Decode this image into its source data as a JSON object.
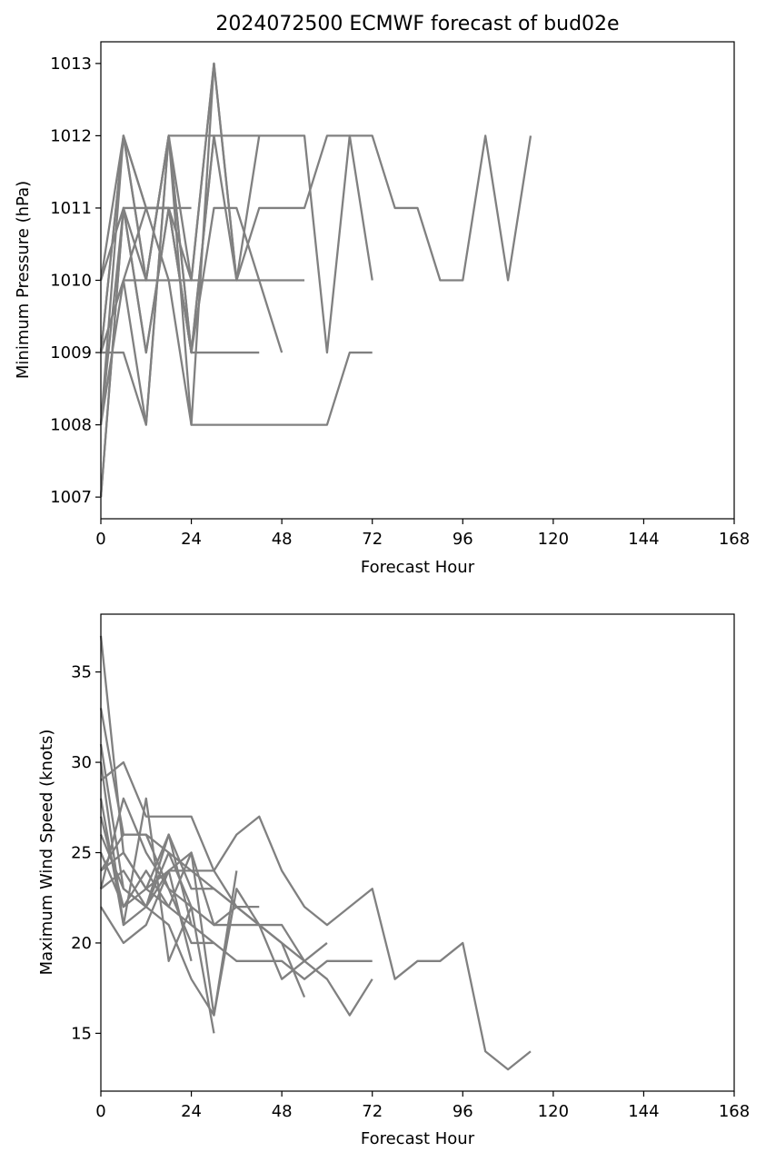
{
  "chart_data": [
    {
      "type": "line",
      "title": "2024072500 ECMWF forecast of bud02e",
      "xlabel": "Forecast Hour",
      "ylabel": "Minimum Pressure (hPa)",
      "xlim": [
        0,
        168
      ],
      "ylim": [
        1006.7,
        1013.3
      ],
      "xticks": [
        0,
        24,
        48,
        72,
        96,
        120,
        144,
        168
      ],
      "yticks": [
        1007,
        1008,
        1009,
        1010,
        1011,
        1012,
        1013
      ],
      "grid": false,
      "line_color": "#808080",
      "series": [
        {
          "x": [
            0,
            6,
            12,
            18,
            24,
            30,
            36,
            42,
            48,
            54,
            60,
            66,
            72,
            78,
            84,
            90,
            96,
            102,
            108,
            114
          ],
          "values": [
            1009,
            1012,
            1010,
            1012,
            1010,
            1013,
            1010,
            1011,
            1011,
            1011,
            1012,
            1012,
            1012,
            1011,
            1011,
            1010,
            1010,
            1012,
            1010,
            1012
          ]
        },
        {
          "x": [
            0,
            6,
            12,
            18,
            24,
            30,
            36,
            42,
            48,
            54,
            60,
            66,
            72
          ],
          "values": [
            1010,
            1011,
            1010,
            1012,
            1012,
            1012,
            1012,
            1012,
            1012,
            1012,
            1009,
            1012,
            1010
          ]
        },
        {
          "x": [
            0,
            6,
            12,
            18,
            24,
            30,
            36,
            42,
            48,
            54,
            60,
            66,
            72
          ],
          "values": [
            1008,
            1012,
            1010,
            1012,
            1008,
            1008,
            1008,
            1008,
            1008,
            1008,
            1008,
            1009,
            1009
          ]
        },
        {
          "x": [
            0,
            6,
            12,
            18,
            24,
            30,
            36,
            42,
            48,
            54
          ],
          "values": [
            1007,
            1011,
            1009,
            1011,
            1010,
            1010,
            1010,
            1010,
            1010,
            1010
          ]
        },
        {
          "x": [
            0,
            6,
            12,
            18,
            24,
            30,
            36,
            42,
            48
          ],
          "values": [
            1009,
            1010,
            1011,
            1011,
            1009,
            1011,
            1011,
            1010,
            1009
          ]
        },
        {
          "x": [
            0,
            6,
            12,
            18,
            24,
            30,
            36,
            42
          ],
          "values": [
            1009,
            1009,
            1008,
            1012,
            1009,
            1009,
            1009,
            1009
          ]
        },
        {
          "x": [
            0,
            6,
            12,
            18,
            24,
            30,
            36,
            42
          ],
          "values": [
            1010,
            1012,
            1011,
            1011,
            1009,
            1012,
            1010,
            1012
          ]
        },
        {
          "x": [
            0,
            6,
            12,
            18,
            24,
            30,
            36
          ],
          "values": [
            1008,
            1010,
            1010,
            1010,
            1010,
            1013,
            1010
          ]
        },
        {
          "x": [
            0,
            6,
            12,
            18,
            24,
            30
          ],
          "values": [
            1009,
            1012,
            1011,
            1010,
            1008,
            1013
          ]
        },
        {
          "x": [
            0,
            6,
            12,
            18,
            24,
            30
          ],
          "values": [
            1007,
            1011,
            1009,
            1011,
            1009,
            1012
          ]
        },
        {
          "x": [
            0,
            6,
            12,
            18,
            24
          ],
          "values": [
            1008,
            1011,
            1011,
            1011,
            1011
          ]
        },
        {
          "x": [
            0,
            6,
            12,
            18,
            24
          ],
          "values": [
            1009,
            1010,
            1008,
            1012,
            1009
          ]
        }
      ]
    },
    {
      "type": "line",
      "title": "",
      "xlabel": "Forecast Hour",
      "ylabel": "Maximum Wind Speed (knots)",
      "xlim": [
        0,
        168
      ],
      "ylim": [
        11.8,
        38.2
      ],
      "xticks": [
        0,
        24,
        48,
        72,
        96,
        120,
        144,
        168
      ],
      "yticks": [
        15,
        20,
        25,
        30,
        35
      ],
      "grid": false,
      "line_color": "#808080",
      "series": [
        {
          "x": [
            0,
            6,
            12,
            18,
            24,
            30,
            36,
            42,
            48,
            54,
            60,
            66,
            72,
            78,
            84,
            90,
            96,
            102,
            108,
            114
          ],
          "values": [
            29,
            30,
            27,
            27,
            27,
            24,
            26,
            27,
            24,
            22,
            21,
            22,
            23,
            18,
            19,
            19,
            20,
            14,
            13,
            14
          ]
        },
        {
          "x": [
            0,
            6,
            12,
            18,
            24,
            30,
            36,
            42,
            48,
            54,
            60,
            66,
            72
          ],
          "values": [
            33,
            26,
            26,
            25,
            24,
            23,
            22,
            21,
            20,
            19,
            18,
            16,
            18
          ]
        },
        {
          "x": [
            0,
            6,
            12,
            18,
            24,
            30,
            36,
            42,
            48,
            54,
            60,
            66,
            72
          ],
          "values": [
            37,
            25,
            23,
            22,
            21,
            20,
            19,
            19,
            19,
            18,
            19,
            19,
            19
          ]
        },
        {
          "x": [
            0,
            6,
            12,
            18,
            24,
            30,
            36,
            42,
            48,
            54,
            60
          ],
          "values": [
            31,
            23,
            22,
            24,
            25,
            21,
            21,
            21,
            21,
            19,
            20
          ]
        },
        {
          "x": [
            0,
            6,
            12,
            18,
            24,
            30,
            36,
            42,
            48,
            54
          ],
          "values": [
            28,
            21,
            22,
            26,
            23,
            23,
            22,
            21,
            20,
            17
          ]
        },
        {
          "x": [
            0,
            6,
            12,
            18,
            24,
            30,
            36,
            42,
            48,
            54
          ],
          "values": [
            25,
            22,
            23,
            24,
            24,
            24,
            22,
            21,
            18,
            19
          ]
        },
        {
          "x": [
            0,
            6,
            12,
            18,
            24,
            30,
            36,
            42
          ],
          "values": [
            27,
            22,
            24,
            22,
            25,
            16,
            23,
            21
          ]
        },
        {
          "x": [
            0,
            6,
            12,
            18,
            24,
            30,
            36,
            42
          ],
          "values": [
            24,
            26,
            26,
            23,
            22,
            21,
            22,
            22
          ]
        },
        {
          "x": [
            0,
            6,
            12,
            18,
            24,
            30,
            36
          ],
          "values": [
            26,
            23,
            22,
            21,
            18,
            16,
            24
          ]
        },
        {
          "x": [
            0,
            6,
            12,
            18,
            24,
            30
          ],
          "values": [
            30,
            21,
            28,
            19,
            22,
            15
          ]
        },
        {
          "x": [
            0,
            6,
            12,
            18,
            24,
            30
          ],
          "values": [
            23,
            28,
            25,
            23,
            20,
            20
          ]
        },
        {
          "x": [
            0,
            6,
            12,
            18,
            24
          ],
          "values": [
            22,
            20,
            21,
            24,
            19
          ]
        },
        {
          "x": [
            0,
            6,
            12,
            18,
            24
          ],
          "values": [
            24,
            25,
            23,
            26,
            21
          ]
        },
        {
          "x": [
            0,
            6,
            12,
            18,
            24
          ],
          "values": [
            23,
            24,
            22,
            25,
            22
          ]
        }
      ]
    }
  ]
}
